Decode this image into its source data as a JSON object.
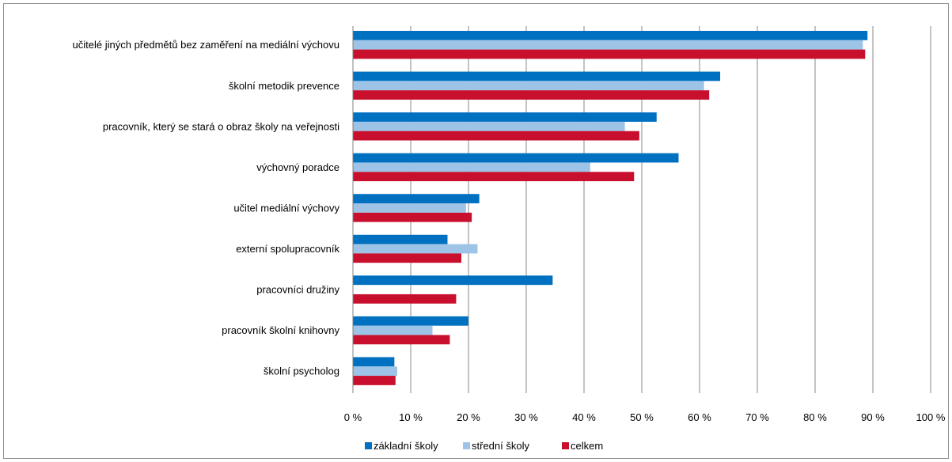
{
  "chart_data": {
    "type": "bar",
    "orientation": "horizontal",
    "categories": [
      "učitelé jiných předmětů bez zaměření na mediální výchovu",
      "školní metodik prevence",
      "pracovník, který se stará o obraz školy na veřejnosti",
      "výchovný poradce",
      "učitel mediální výchovy",
      "externí spolupracovník",
      "pracovníci družiny",
      "pracovník školní knihovny",
      "školní psycholog"
    ],
    "series": [
      {
        "name": "základní školy",
        "color": "#0070C0",
        "values": [
          89.0,
          63.5,
          52.5,
          56.3,
          21.8,
          16.3,
          34.5,
          19.9,
          7.1
        ]
      },
      {
        "name": "střední školy",
        "color": "#9DC3E6",
        "values": [
          88.2,
          60.7,
          47.0,
          41.0,
          19.5,
          21.5,
          0,
          13.7,
          7.6
        ]
      },
      {
        "name": "celkem",
        "color": "#C8102E",
        "values": [
          88.6,
          61.6,
          49.5,
          48.6,
          20.5,
          18.7,
          17.8,
          16.7,
          7.3
        ]
      }
    ],
    "xlim": [
      0,
      100
    ],
    "xticks": [
      "0 %",
      "10 %",
      "20 %",
      "30 %",
      "40 %",
      "50 %",
      "60 %",
      "70 %",
      "80 %",
      "90 %",
      "100 %"
    ],
    "grid": true,
    "legend_position": "bottom"
  }
}
